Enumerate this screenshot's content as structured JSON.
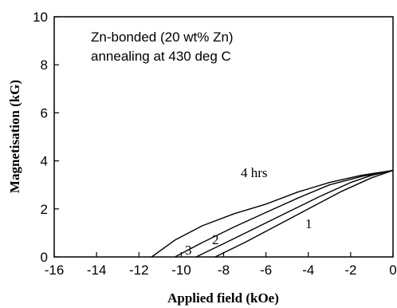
{
  "chart_data": {
    "type": "line",
    "title": "",
    "xlabel": "Applied field (kOe)",
    "ylabel": "Magnetisation (kG)",
    "xlim": [
      -16,
      0
    ],
    "ylim": [
      0,
      10
    ],
    "xticks": [
      -16,
      -14,
      -12,
      -10,
      -8,
      -6,
      -4,
      -2,
      0
    ],
    "yticks": [
      0,
      2,
      4,
      6,
      8,
      10
    ],
    "grid": false,
    "annotations": [
      "Zn-bonded (20 wt% Zn)",
      "annealing at 430  deg C"
    ],
    "series": [
      {
        "name": "1",
        "x": [
          -8.4,
          -7.0,
          -5.5,
          -4.0,
          -2.5,
          -1.0,
          0
        ],
        "y": [
          0,
          0.6,
          1.3,
          2.0,
          2.7,
          3.3,
          3.6
        ]
      },
      {
        "name": "2",
        "x": [
          -9.3,
          -8.0,
          -6.5,
          -5.0,
          -3.5,
          -2.0,
          -1.0,
          0
        ],
        "y": [
          0,
          0.55,
          1.2,
          1.85,
          2.5,
          3.1,
          3.4,
          3.6
        ]
      },
      {
        "name": "3",
        "x": [
          -10.3,
          -9.0,
          -7.5,
          -6.0,
          -4.5,
          -3.0,
          -1.5,
          0
        ],
        "y": [
          0,
          0.6,
          1.25,
          1.85,
          2.45,
          3.0,
          3.35,
          3.6
        ]
      },
      {
        "name": "4 hrs",
        "x": [
          -11.4,
          -10.3,
          -9.0,
          -7.5,
          -6.0,
          -4.5,
          -3.0,
          -1.5,
          0
        ],
        "y": [
          0,
          0.7,
          1.3,
          1.8,
          2.2,
          2.7,
          3.1,
          3.4,
          3.6
        ]
      }
    ],
    "curve_labels": [
      "1",
      "2",
      "3",
      "4 hrs"
    ]
  }
}
